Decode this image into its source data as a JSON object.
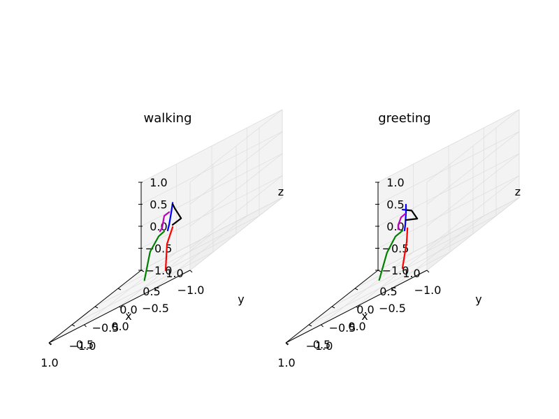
{
  "chart_data": [
    {
      "type": "line",
      "projection": "3d",
      "title": "walking",
      "xlabel": "x",
      "ylabel": "y",
      "zlabel": "z",
      "xlim": [
        -1.0,
        1.0
      ],
      "ylim": [
        -1.0,
        1.0
      ],
      "zlim": [
        -1.0,
        1.0
      ],
      "grid": true,
      "x_ticks": [
        "−1.0",
        "−0.5",
        "0.0",
        "0.5",
        "1.0"
      ],
      "y_ticks": [
        "−1.0",
        "−0.5",
        "0.0",
        "0.5",
        "1.0"
      ],
      "z_ticks": [
        "−1.0",
        "−0.5",
        "0.0",
        "0.5",
        "1.0"
      ],
      "series": [
        {
          "color": "#ff0000",
          "points": [
            [
              -0.1,
              0.0,
              -0.1
            ],
            [
              -0.02,
              0.0,
              -0.42
            ],
            [
              0.0,
              0.0,
              -1.0
            ]
          ]
        },
        {
          "color": "#008000",
          "points": [
            [
              0.02,
              0.0,
              -0.1
            ],
            [
              0.1,
              0.0,
              -0.15
            ],
            [
              0.22,
              0.0,
              -0.4
            ],
            [
              0.3,
              0.0,
              -0.98
            ]
          ]
        },
        {
          "color": "#0000ff",
          "points": [
            [
              -0.1,
              0.0,
              0.45
            ],
            [
              -0.08,
              0.0,
              0.25
            ],
            [
              -0.05,
              0.0,
              0.0
            ],
            [
              -0.03,
              0.0,
              -0.12
            ]
          ]
        },
        {
          "color": "#000000",
          "points": [
            [
              -0.1,
              0.0,
              0.42
            ],
            [
              -0.13,
              0.0,
              0.3
            ],
            [
              -0.22,
              0.0,
              0.0
            ],
            [
              -0.1,
              0.0,
              -0.05
            ]
          ]
        },
        {
          "color": "#bf00bf",
          "points": [
            [
              -0.05,
              0.0,
              0.28
            ],
            [
              0.02,
              0.0,
              0.25
            ],
            [
              0.05,
              0.0,
              0.0
            ],
            [
              0.08,
              0.0,
              -0.05
            ]
          ]
        }
      ]
    },
    {
      "type": "line",
      "projection": "3d",
      "title": "greeting",
      "xlabel": "x",
      "ylabel": "y",
      "zlabel": "z",
      "xlim": [
        -1.0,
        1.0
      ],
      "ylim": [
        -1.0,
        1.0
      ],
      "zlim": [
        -1.0,
        1.0
      ],
      "grid": true,
      "x_ticks": [
        "−1.0",
        "−0.5",
        "0.0",
        "0.5",
        "1.0"
      ],
      "y_ticks": [
        "−1.0",
        "−0.5",
        "0.0",
        "0.5",
        "1.0"
      ],
      "z_ticks": [
        "−1.0",
        "−0.5",
        "0.0",
        "0.5",
        "1.0"
      ],
      "series": [
        {
          "color": "#ff0000",
          "points": [
            [
              -0.07,
              0.0,
              -0.1
            ],
            [
              -0.06,
              0.0,
              -0.4
            ],
            [
              0.0,
              0.0,
              -0.95
            ]
          ]
        },
        {
          "color": "#008000",
          "points": [
            [
              0.0,
              0.0,
              -0.1
            ],
            [
              0.1,
              0.0,
              -0.15
            ],
            [
              0.22,
              0.0,
              -0.42
            ],
            [
              0.33,
              0.0,
              -0.95
            ]
          ]
        },
        {
          "color": "#0000ff",
          "points": [
            [
              -0.05,
              0.0,
              0.45
            ],
            [
              -0.05,
              0.0,
              0.27
            ],
            [
              -0.04,
              0.0,
              0.0
            ],
            [
              -0.03,
              0.0,
              -0.12
            ]
          ]
        },
        {
          "color": "#000000",
          "points": [
            [
              -0.05,
              0.0,
              0.33
            ],
            [
              -0.13,
              0.0,
              0.25
            ],
            [
              -0.21,
              0.0,
              0.0
            ],
            [
              -0.05,
              0.0,
              0.1
            ]
          ]
        },
        {
          "color": "#0000ff",
          "points": [
            [
              -0.05,
              0.0,
              0.33
            ],
            [
              0.0,
              0.0,
              0.38
            ]
          ]
        },
        {
          "color": "#bf00bf",
          "points": [
            [
              -0.04,
              0.0,
              0.25
            ],
            [
              0.02,
              0.0,
              0.22
            ],
            [
              0.06,
              0.0,
              0.08
            ],
            [
              0.06,
              0.0,
              -0.02
            ]
          ]
        }
      ]
    }
  ]
}
